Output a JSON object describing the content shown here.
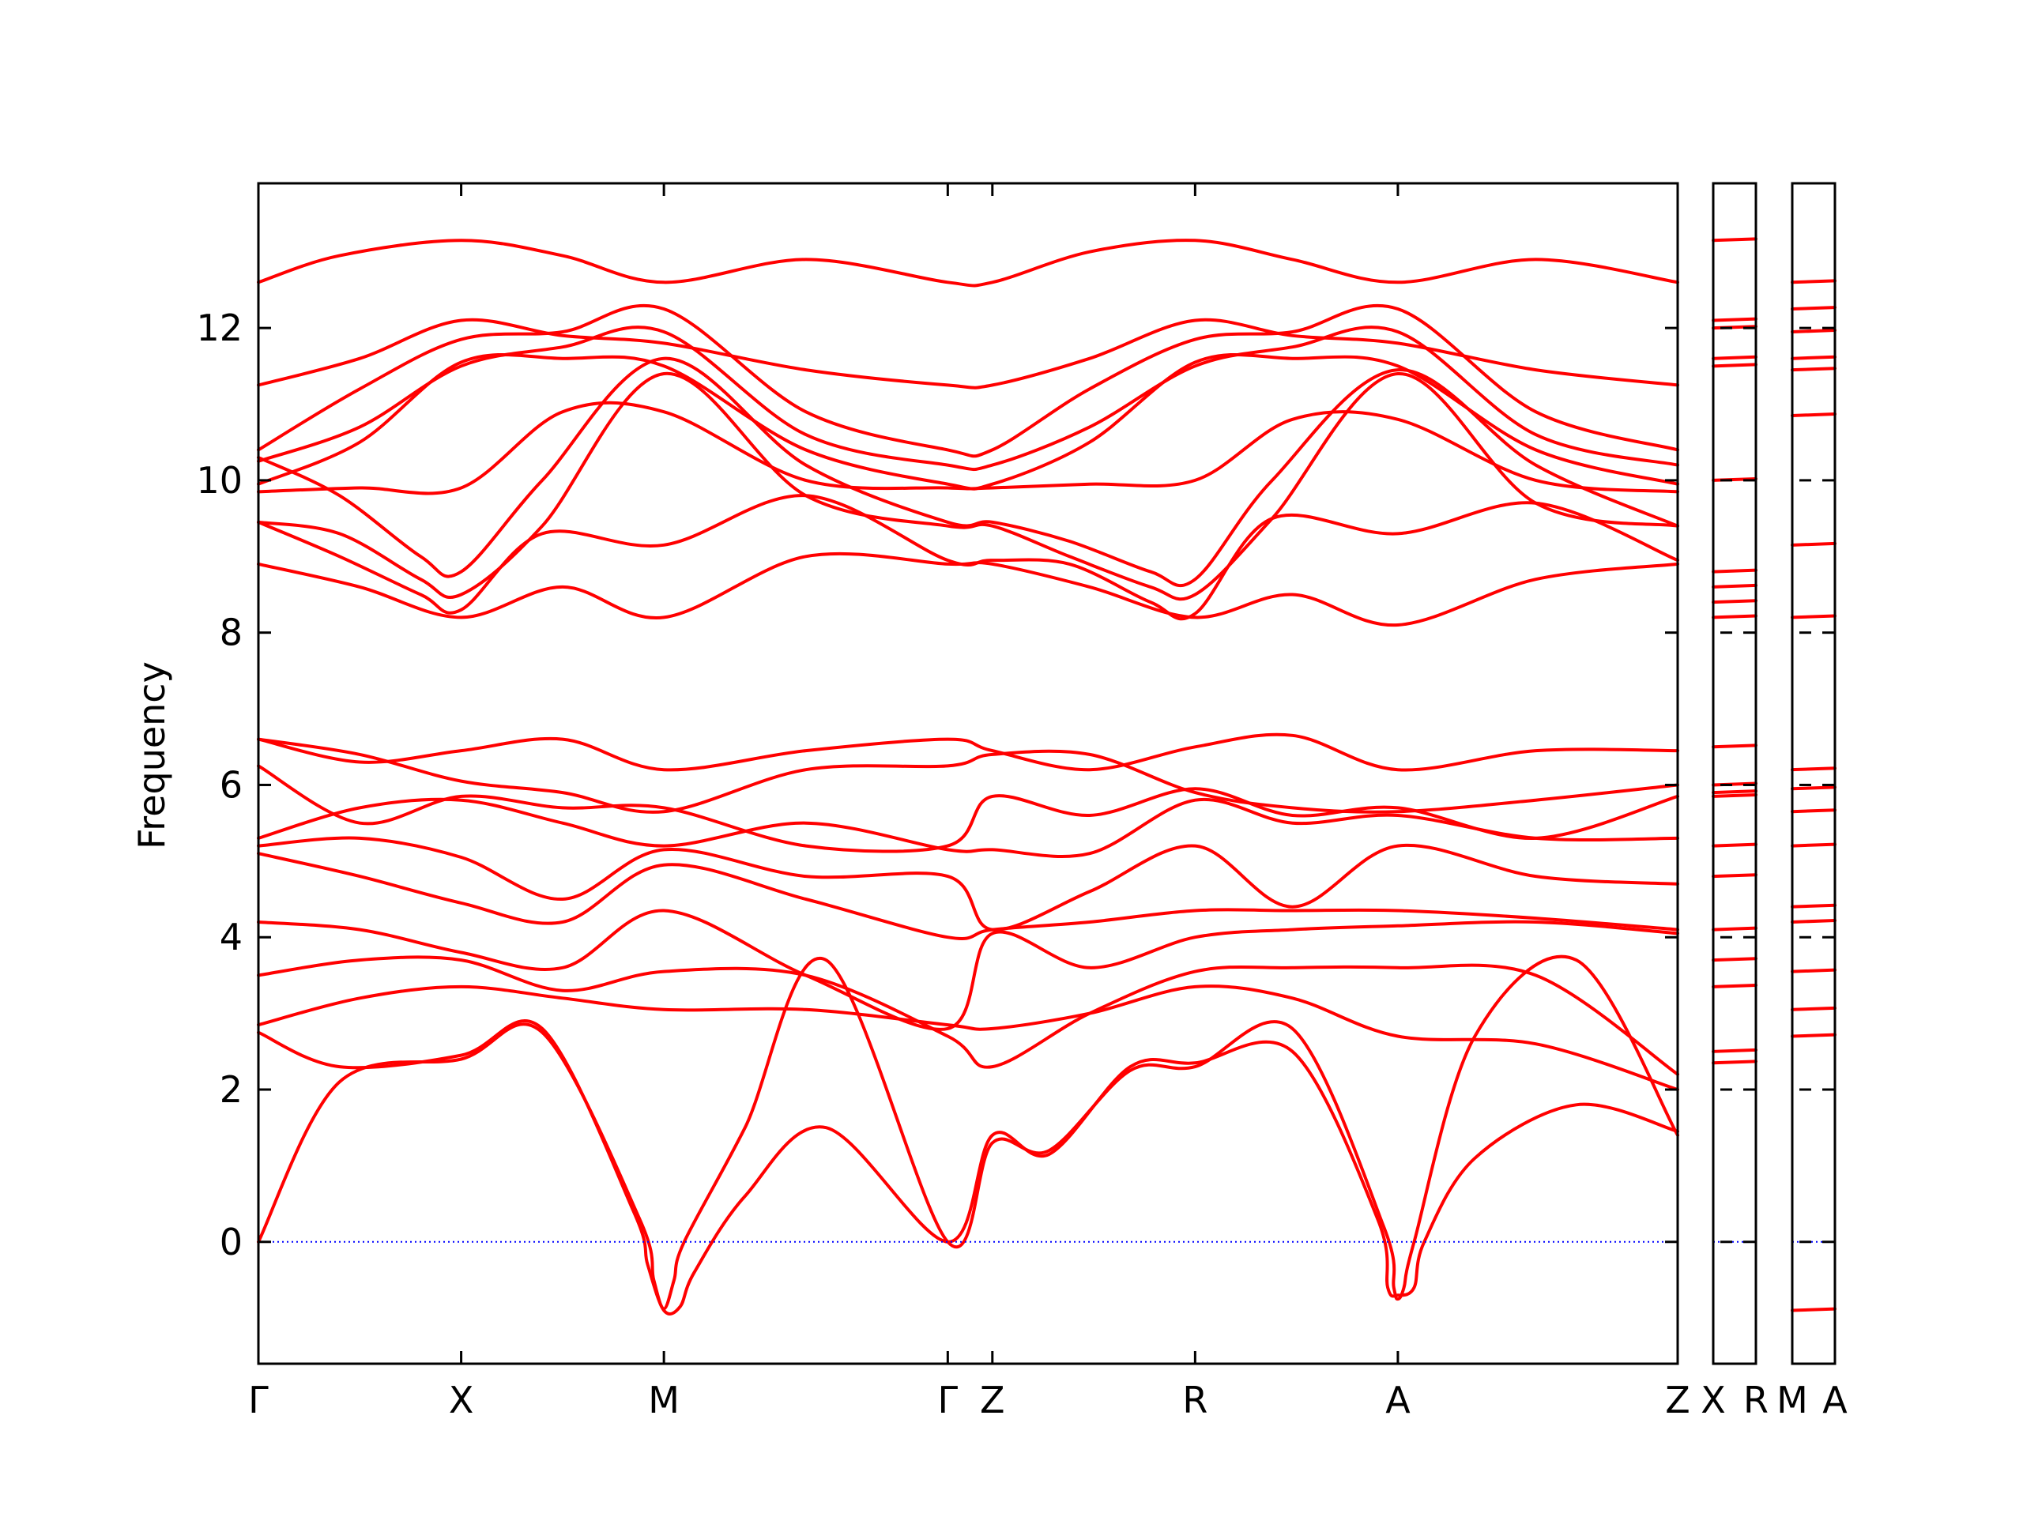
{
  "chart_data": [
    {
      "type": "line",
      "title": "",
      "ylabel": "Frequency",
      "ylim": [
        -1.6,
        13.9
      ],
      "yticks": [
        0,
        2,
        4,
        6,
        8,
        10,
        12
      ],
      "zero_line_color": "#0000ff",
      "band_color": "#ff0000",
      "path_labels": [
        "Γ",
        "X",
        "M",
        "Γ",
        "Z",
        "R",
        "A",
        "Z"
      ],
      "path_positions": [
        0,
        1,
        2,
        3.4,
        3.62,
        4.62,
        5.62,
        7.0
      ],
      "series": [
        {
          "x": [
            0,
            0.4,
            1,
            1.5,
            2,
            2.7,
            3.4,
            3.62,
            4.1,
            4.62,
            5.1,
            5.62,
            6.3,
            7.0
          ],
          "y": [
            12.6,
            12.95,
            13.15,
            12.95,
            12.6,
            12.9,
            12.6,
            12.6,
            13.0,
            13.15,
            12.9,
            12.6,
            12.9,
            12.6
          ]
        },
        {
          "x": [
            0,
            0.5,
            1,
            1.5,
            2,
            2.7,
            3.4,
            3.62,
            4.1,
            4.62,
            5.1,
            5.62,
            6.3,
            7.0
          ],
          "y": [
            11.25,
            11.6,
            12.1,
            11.9,
            11.8,
            11.45,
            11.25,
            11.25,
            11.6,
            12.1,
            11.9,
            11.8,
            11.45,
            11.25
          ]
        },
        {
          "x": [
            0,
            0.5,
            1,
            1.5,
            2,
            2.7,
            3.4,
            3.62,
            4.1,
            4.62,
            5.1,
            5.62,
            6.3,
            7.0
          ],
          "y": [
            10.4,
            11.2,
            11.85,
            11.95,
            12.25,
            10.9,
            10.4,
            10.4,
            11.2,
            11.85,
            11.95,
            12.25,
            10.9,
            10.4
          ]
        },
        {
          "x": [
            0,
            0.5,
            1,
            1.5,
            2,
            2.7,
            3.4,
            3.62,
            4.1,
            4.62,
            5.1,
            5.62,
            6.3,
            7.0
          ],
          "y": [
            10.25,
            10.7,
            11.5,
            11.75,
            11.95,
            10.6,
            10.2,
            10.2,
            10.7,
            11.5,
            11.75,
            11.95,
            10.6,
            10.2
          ]
        },
        {
          "x": [
            0,
            0.5,
            1,
            1.5,
            2,
            2.7,
            3.4,
            3.62,
            4.1,
            4.62,
            5.1,
            5.62,
            6.3,
            7.0
          ],
          "y": [
            9.95,
            10.5,
            11.55,
            11.6,
            11.5,
            10.4,
            9.95,
            9.95,
            10.5,
            11.55,
            11.6,
            11.5,
            10.4,
            9.95
          ]
        },
        {
          "x": [
            0,
            0.5,
            1,
            1.5,
            2,
            2.7,
            3.4,
            3.62,
            4.1,
            4.62,
            5.1,
            5.62,
            6.3,
            7.0
          ],
          "y": [
            9.85,
            9.9,
            9.9,
            10.9,
            10.9,
            10.0,
            9.9,
            9.9,
            9.95,
            10.0,
            10.8,
            10.8,
            10.0,
            9.85
          ]
        },
        {
          "x": [
            0,
            0.4,
            0.8,
            1,
            1.4,
            2,
            2.7,
            3.4,
            3.62,
            4.0,
            4.4,
            4.62,
            5.0,
            5.62,
            6.3,
            7.0
          ],
          "y": [
            10.3,
            9.8,
            9.0,
            8.8,
            10.0,
            11.6,
            10.2,
            9.45,
            9.45,
            9.2,
            8.8,
            8.7,
            10.0,
            11.45,
            10.2,
            9.4
          ]
        },
        {
          "x": [
            0,
            0.4,
            0.8,
            1,
            1.4,
            2,
            2.7,
            3.4,
            3.62,
            4.0,
            4.4,
            4.62,
            5.0,
            5.62,
            6.3,
            7.0
          ],
          "y": [
            9.45,
            9.3,
            8.7,
            8.5,
            9.4,
            11.4,
            9.8,
            9.4,
            9.4,
            9.0,
            8.6,
            8.5,
            9.5,
            11.4,
            9.7,
            9.4
          ]
        },
        {
          "x": [
            0,
            0.4,
            0.8,
            1,
            1.4,
            2,
            2.7,
            3.4,
            3.62,
            4.0,
            4.4,
            4.62,
            5.0,
            5.62,
            6.3,
            7.0
          ],
          "y": [
            9.45,
            9.0,
            8.5,
            8.3,
            9.3,
            9.15,
            9.8,
            8.95,
            8.95,
            8.9,
            8.4,
            8.25,
            9.5,
            9.3,
            9.7,
            8.95
          ]
        },
        {
          "x": [
            0,
            0.5,
            1,
            1.5,
            2,
            2.7,
            3.4,
            3.62,
            4.1,
            4.62,
            5.1,
            5.62,
            6.3,
            7.0
          ],
          "y": [
            8.9,
            8.6,
            8.2,
            8.6,
            8.2,
            9.0,
            8.9,
            8.9,
            8.6,
            8.2,
            8.5,
            8.1,
            8.7,
            8.9
          ]
        },
        {
          "x": [
            0,
            0.5,
            1,
            1.5,
            2,
            2.7,
            3.4,
            3.62,
            4.1,
            4.62,
            5.1,
            5.62,
            6.3,
            7.0
          ],
          "y": [
            6.6,
            6.3,
            6.45,
            6.6,
            6.2,
            6.45,
            6.6,
            6.45,
            6.2,
            6.5,
            6.65,
            6.2,
            6.45,
            6.45
          ]
        },
        {
          "x": [
            0,
            0.5,
            1,
            1.5,
            2,
            2.7,
            3.4,
            3.62,
            4.1,
            4.62,
            5.1,
            5.62,
            6.3,
            7.0
          ],
          "y": [
            6.6,
            6.4,
            6.05,
            5.9,
            5.65,
            6.2,
            6.25,
            6.4,
            6.4,
            5.9,
            5.7,
            5.65,
            5.8,
            6.0
          ]
        },
        {
          "x": [
            0,
            0.5,
            1,
            1.5,
            2,
            2.7,
            3.4,
            3.62,
            4.1,
            4.62,
            5.1,
            5.62,
            6.3,
            7.0
          ],
          "y": [
            6.25,
            5.5,
            5.85,
            5.7,
            5.7,
            5.2,
            5.2,
            5.85,
            5.6,
            5.95,
            5.6,
            5.7,
            5.3,
            5.85
          ]
        },
        {
          "x": [
            0,
            0.5,
            1,
            1.5,
            2,
            2.7,
            3.4,
            3.62,
            4.1,
            4.62,
            5.1,
            5.62,
            6.3,
            7.0
          ],
          "y": [
            5.3,
            5.7,
            5.8,
            5.5,
            5.2,
            5.5,
            5.15,
            5.15,
            5.1,
            5.8,
            5.5,
            5.6,
            5.3,
            5.3
          ]
        },
        {
          "x": [
            0,
            0.5,
            1,
            1.5,
            2,
            2.7,
            3.4,
            3.62,
            4.1,
            4.62,
            5.1,
            5.62,
            6.3,
            7.0
          ],
          "y": [
            5.2,
            5.3,
            5.05,
            4.5,
            5.15,
            4.8,
            4.8,
            4.1,
            4.6,
            5.2,
            4.4,
            5.2,
            4.8,
            4.7
          ]
        },
        {
          "x": [
            0,
            0.5,
            1,
            1.5,
            2,
            2.7,
            3.4,
            3.62,
            4.1,
            4.62,
            5.1,
            5.62,
            6.3,
            7.0
          ],
          "y": [
            5.1,
            4.8,
            4.45,
            4.2,
            4.95,
            4.5,
            4.0,
            4.1,
            4.2,
            4.35,
            4.35,
            4.35,
            4.25,
            4.1
          ]
        },
        {
          "x": [
            0,
            0.5,
            1,
            1.5,
            2,
            2.7,
            3.4,
            3.62,
            4.1,
            4.62,
            5.1,
            5.62,
            6.3,
            7.0
          ],
          "y": [
            4.2,
            4.1,
            3.8,
            3.6,
            4.35,
            3.5,
            2.8,
            4.05,
            3.6,
            4.0,
            4.1,
            4.15,
            4.2,
            4.05
          ]
        },
        {
          "x": [
            0,
            0.5,
            1,
            1.5,
            2,
            2.7,
            3.4,
            3.62,
            4.1,
            4.62,
            5.1,
            5.62,
            6.3,
            7.0
          ],
          "y": [
            3.5,
            3.7,
            3.7,
            3.3,
            3.55,
            3.5,
            2.7,
            2.3,
            3.0,
            3.55,
            3.6,
            3.6,
            3.5,
            2.2
          ]
        },
        {
          "x": [
            0,
            0.5,
            1,
            1.5,
            2,
            2.7,
            3.4,
            3.62,
            4.1,
            4.62,
            5.1,
            5.62,
            6.3,
            7.0
          ],
          "y": [
            2.85,
            3.2,
            3.35,
            3.2,
            3.05,
            3.05,
            2.85,
            2.8,
            3.0,
            3.35,
            3.2,
            2.7,
            2.6,
            2.0
          ]
        },
        {
          "x": [
            0,
            0.4,
            1,
            1.4,
            1.85,
            1.92,
            2.0,
            2.08,
            2.15,
            2.4,
            2.8,
            3.4,
            3.62,
            3.9,
            4.3,
            4.62,
            5.1,
            5.52,
            5.57,
            5.62,
            5.7,
            5.75,
            6.0,
            6.5,
            7.0
          ],
          "y": [
            2.75,
            2.3,
            2.45,
            2.8,
            0.4,
            -0.3,
            -0.9,
            -0.85,
            -0.4,
            0.6,
            1.5,
            0.0,
            1.4,
            1.15,
            2.3,
            2.35,
            2.5,
            0.3,
            -0.6,
            -0.7,
            -0.6,
            0.0,
            1.1,
            1.8,
            1.45
          ]
        },
        {
          "x": [
            0,
            0.4,
            1,
            1.4,
            1.88,
            1.95,
            2.0,
            2.05,
            2.1,
            2.4,
            2.8,
            3.4,
            3.62,
            3.9,
            4.3,
            4.62,
            5.1,
            5.55,
            5.6,
            5.62,
            5.65,
            5.7,
            6.0,
            6.5,
            7.0
          ],
          "y": [
            0.0,
            2.1,
            2.4,
            2.75,
            0.3,
            -0.5,
            -0.88,
            -0.5,
            0.0,
            1.5,
            3.7,
            0.0,
            1.3,
            1.2,
            2.25,
            2.3,
            2.8,
            0.2,
            -0.6,
            -0.75,
            -0.6,
            0.0,
            2.7,
            3.7,
            1.4
          ]
        }
      ]
    },
    {
      "type": "line",
      "title": "",
      "path_labels": [
        "X",
        "R"
      ],
      "ylim": [
        -1.6,
        13.9
      ],
      "series_levels": [
        13.15,
        12.1,
        12.0,
        11.6,
        11.5,
        10.0,
        8.8,
        8.6,
        8.4,
        8.2,
        6.5,
        6.0,
        5.9,
        5.85,
        5.2,
        4.8,
        4.1,
        3.7,
        3.35,
        2.5,
        2.35,
        0.0
      ]
    },
    {
      "type": "line",
      "title": "",
      "path_labels": [
        "M",
        "A"
      ],
      "ylim": [
        -1.6,
        13.9
      ],
      "series_levels": [
        12.6,
        12.25,
        11.95,
        11.6,
        11.45,
        10.85,
        9.15,
        8.2,
        6.2,
        5.95,
        5.65,
        5.2,
        4.4,
        4.2,
        3.55,
        3.05,
        2.7,
        0.0,
        -0.9
      ]
    }
  ]
}
